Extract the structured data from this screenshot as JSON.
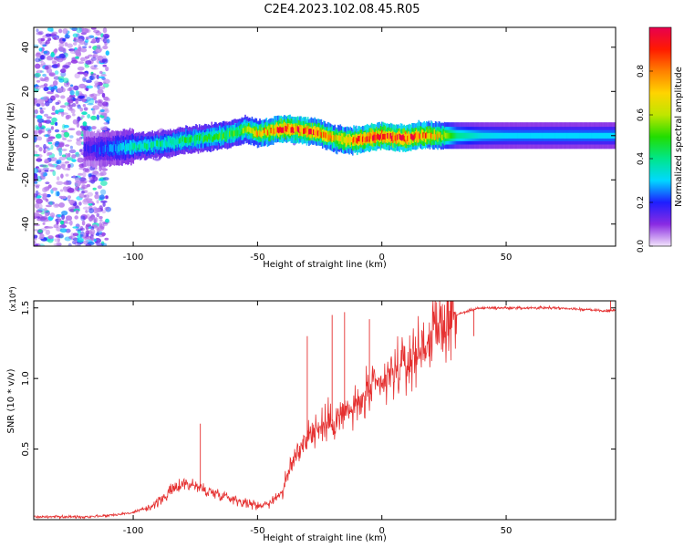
{
  "title": "C2E4.2023.102.08.45.R05",
  "chart_data": [
    {
      "id": "spectrogram",
      "type": "heatmap",
      "xlabel": "Height of straight line (km)",
      "ylabel": "Frequency (Hz)",
      "xlim": [
        -140,
        94
      ],
      "ylim": [
        -50,
        49
      ],
      "xticks": [
        -100,
        -50,
        0,
        50
      ],
      "yticks": [
        -40,
        -20,
        0,
        20,
        40
      ],
      "grid": false,
      "colorbar": {
        "label": "Normalized spectral amplitude",
        "range": [
          0,
          1
        ],
        "ticks": [
          "0.0",
          "0.2",
          "0.4",
          "0.6",
          "0.8"
        ],
        "colors": [
          "#f2e4fb",
          "#8a2be2",
          "#1e1eff",
          "#00d8ff",
          "#00e68a",
          "#22dd00",
          "#bfe600",
          "#ffd400",
          "#ff8000",
          "#ff1a00",
          "#e8004f"
        ]
      },
      "ridge": {
        "x": [
          -140,
          -120,
          -110,
          -100,
          -90,
          -80,
          -70,
          -60,
          -55,
          -50,
          -45,
          -40,
          -35,
          -30,
          -25,
          -20,
          -15,
          -10,
          -5,
          0,
          5,
          10,
          15,
          20,
          25,
          30,
          40,
          50,
          60,
          70,
          80,
          94
        ],
        "frequency": [
          -6,
          -6,
          -6,
          -5,
          -4,
          -2,
          -1,
          1,
          3,
          1,
          2,
          3,
          3,
          2,
          1,
          -1,
          -2,
          -2,
          -1,
          0,
          -1,
          -1,
          0,
          0,
          0,
          0,
          0,
          0,
          0,
          0,
          0,
          0
        ],
        "amplitude": [
          0.12,
          0.16,
          0.25,
          0.35,
          0.4,
          0.42,
          0.45,
          0.5,
          0.55,
          0.7,
          0.78,
          0.85,
          0.9,
          0.88,
          0.8,
          0.7,
          0.75,
          0.85,
          0.9,
          0.92,
          0.9,
          0.88,
          0.82,
          0.78,
          0.6,
          0.4,
          0.32,
          0.3,
          0.3,
          0.3,
          0.3,
          0.3
        ]
      }
    },
    {
      "id": "snr",
      "type": "line",
      "xlabel": "Height of straight line (km)",
      "ylabel": "SNR (10 * v/v)",
      "y_multiplier": "(x10⁴)",
      "xlim": [
        -140,
        94
      ],
      "ylim": [
        0,
        1.55
      ],
      "xticks": [
        -100,
        -50,
        0,
        50
      ],
      "yticks": [
        "0.5",
        "1.0",
        "1.5"
      ],
      "grid": false,
      "color": "#e53030",
      "series": [
        {
          "x": [
            -140,
            -120,
            -110,
            -100,
            -95,
            -90,
            -85,
            -80,
            -75,
            -70,
            -65,
            -60,
            -55,
            -50,
            -45,
            -40,
            -35,
            -30,
            -25,
            -20,
            -15,
            -10,
            -5,
            0,
            5,
            10,
            15,
            20,
            25,
            30,
            35,
            40,
            45,
            50,
            60,
            70,
            80,
            90,
            94
          ],
          "values": [
            0.02,
            0.02,
            0.03,
            0.05,
            0.08,
            0.12,
            0.2,
            0.26,
            0.24,
            0.2,
            0.18,
            0.15,
            0.12,
            0.1,
            0.12,
            0.2,
            0.45,
            0.6,
            0.65,
            0.7,
            0.75,
            0.8,
            0.9,
            0.95,
            1.05,
            1.1,
            1.2,
            1.3,
            1.4,
            1.45,
            1.48,
            1.5,
            1.5,
            1.5,
            1.5,
            1.5,
            1.49,
            1.48,
            1.48
          ]
        }
      ],
      "annotations": [
        {
          "x": -73,
          "y": 0.68
        },
        {
          "x": -30,
          "y": 1.3
        },
        {
          "x": -20,
          "y": 1.45
        },
        {
          "x": -15,
          "y": 1.47
        },
        {
          "x": -5,
          "y": 1.42
        },
        {
          "x": 37,
          "y": 1.3
        },
        {
          "x": 92,
          "y": 1.55
        }
      ]
    }
  ]
}
